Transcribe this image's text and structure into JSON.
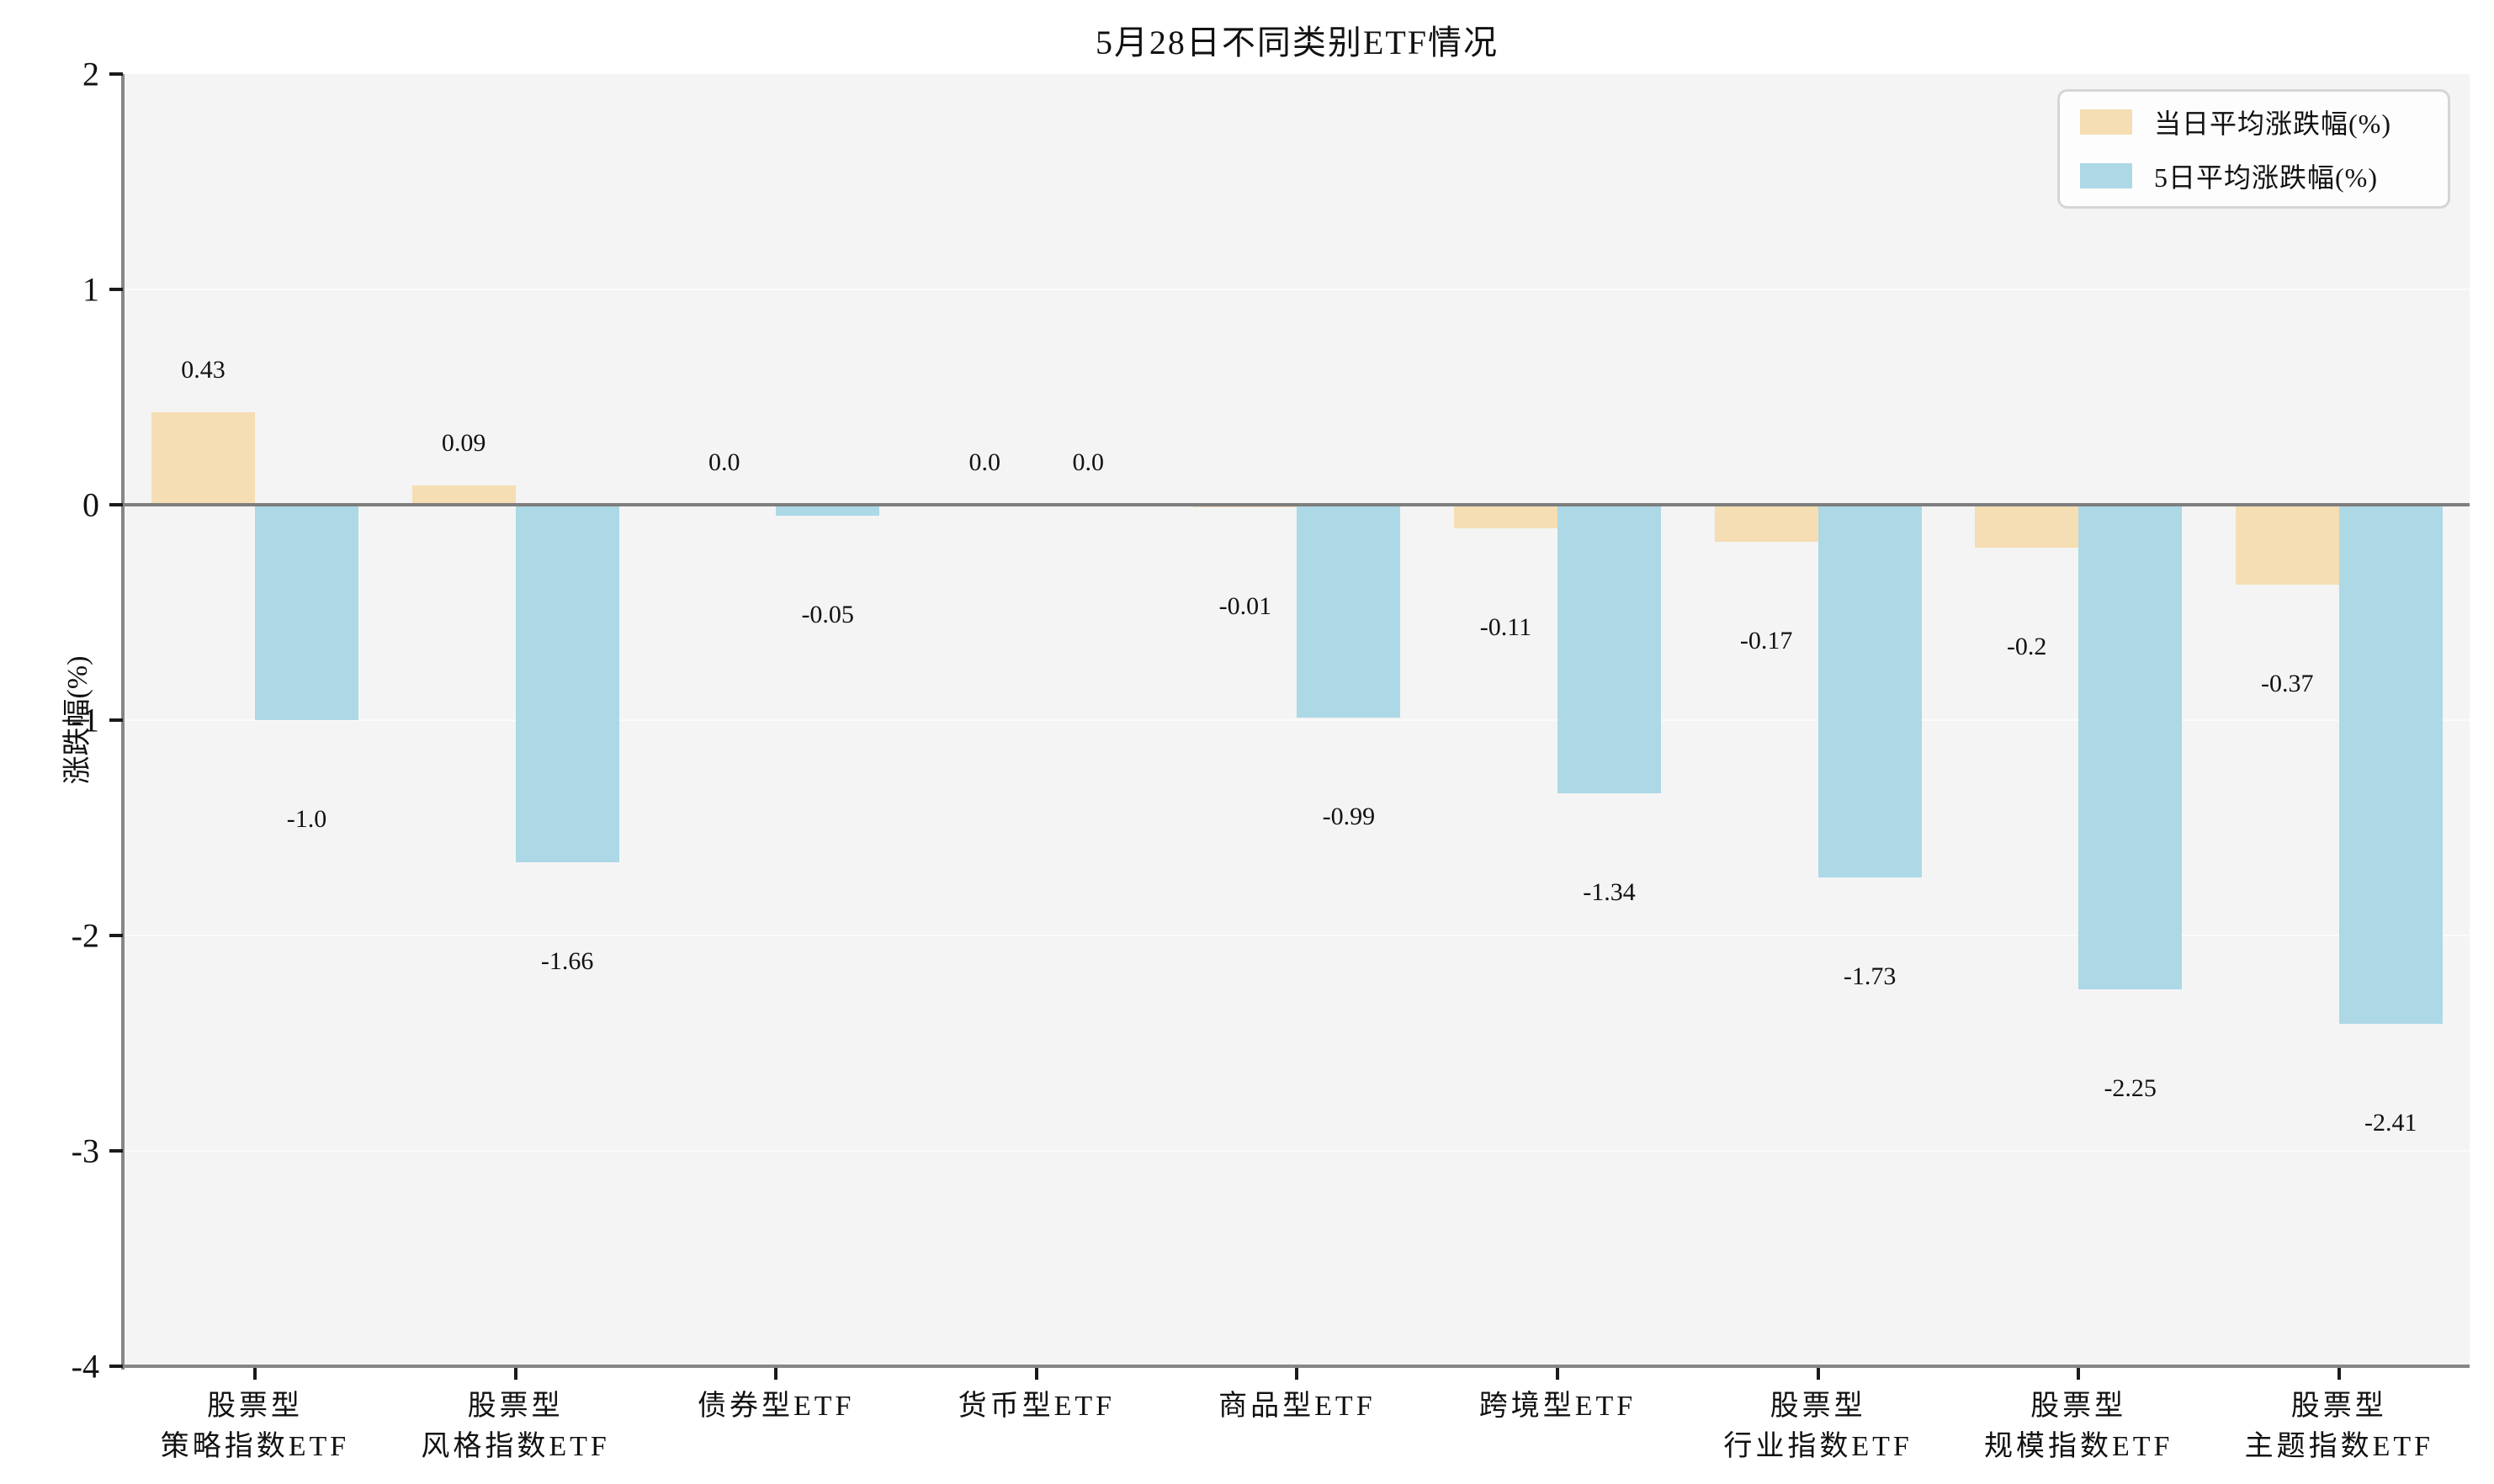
{
  "chart_data": {
    "type": "bar",
    "title": "5月28日不同类别ETF情况",
    "ylabel": "涨跌幅(%)",
    "xlabel": "",
    "ylim": [
      -4,
      2
    ],
    "yticks": [
      2,
      1,
      0,
      -1,
      -2,
      -3,
      -4
    ],
    "grid": "horizontal white gridlines on light-gray plot background",
    "legend_position": "upper-right",
    "categories": [
      "股票型\n策略指数ETF",
      "股票型\n风格指数ETF",
      "债券型ETF",
      "货币型ETF",
      "商品型ETF",
      "跨境型ETF",
      "股票型\n行业指数ETF",
      "股票型\n规模指数ETF",
      "股票型\n主题指数ETF"
    ],
    "series": [
      {
        "name": "当日平均涨跌幅(%)",
        "color": "#f5deb3",
        "values": [
          0.43,
          0.09,
          0.0,
          0.0,
          -0.01,
          -0.11,
          -0.17,
          -0.2,
          -0.37
        ],
        "value_labels": [
          "0.43",
          "0.09",
          "0.0",
          "0.0",
          "-0.01",
          "-0.11",
          "-0.17",
          "-0.2",
          "-0.37"
        ]
      },
      {
        "name": "5日平均涨跌幅(%)",
        "color": "#add8e6",
        "values": [
          -1.0,
          -1.66,
          -0.05,
          0.0,
          -0.99,
          -1.34,
          -1.73,
          -2.25,
          -2.41
        ],
        "value_labels": [
          "-1.0",
          "-1.66",
          "-0.05",
          "0.0",
          "-0.99",
          "-1.34",
          "-1.73",
          "-2.25",
          "-2.41"
        ]
      }
    ]
  },
  "style_colors": {
    "plot_background": "#f4f4f4",
    "page_background": "#ffffff",
    "gridline": "#fbfbfb",
    "zero_line": "#7e7e7e",
    "spine": "#868686",
    "tick": "#1a1a1a",
    "text": "#111111",
    "legend_border": "#d5d5d5",
    "legend_background": "#fdfdfd"
  }
}
